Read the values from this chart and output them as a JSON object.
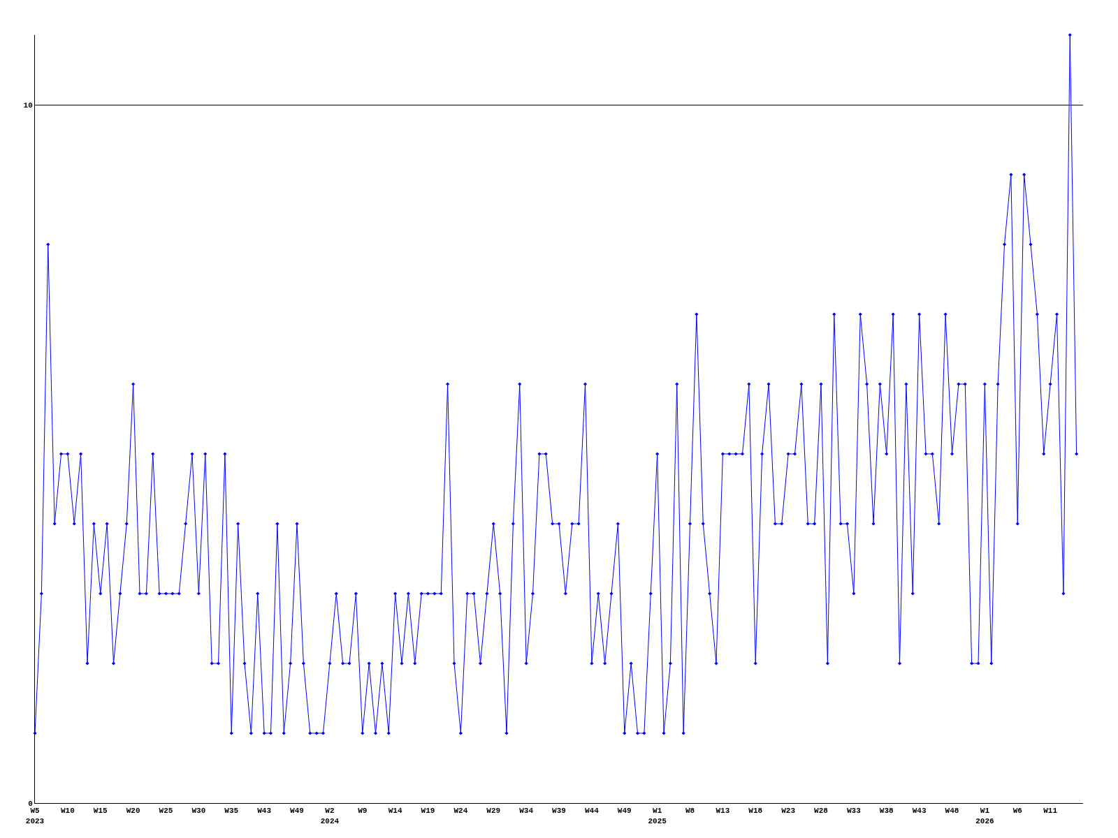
{
  "chart_data": {
    "type": "line",
    "categories": [
      "W5\n2023",
      null,
      null,
      null,
      null,
      "W10",
      null,
      null,
      null,
      null,
      "W15",
      null,
      null,
      null,
      null,
      "W20",
      null,
      null,
      null,
      null,
      "W25",
      null,
      null,
      null,
      null,
      "W30",
      null,
      null,
      null,
      null,
      "W35",
      null,
      null,
      null,
      null,
      "W43",
      null,
      null,
      null,
      null,
      "W49",
      null,
      null,
      null,
      null,
      "W2\n2024",
      null,
      null,
      null,
      null,
      "W9",
      null,
      null,
      null,
      null,
      "W14",
      null,
      null,
      null,
      null,
      "W19",
      null,
      null,
      null,
      null,
      "W24",
      null,
      null,
      null,
      null,
      "W29",
      null,
      null,
      null,
      null,
      "W34",
      null,
      null,
      null,
      null,
      "W39",
      null,
      null,
      null,
      null,
      "W44",
      null,
      null,
      null,
      null,
      "W49",
      null,
      null,
      null,
      null,
      "W1\n2025",
      null,
      null,
      null,
      null,
      "W8",
      null,
      null,
      null,
      null,
      "W13",
      null,
      null,
      null,
      null,
      "W18",
      null,
      null,
      null,
      null,
      "W23",
      null,
      null,
      null,
      null,
      "W28",
      null,
      null,
      null,
      null,
      "W33",
      null,
      null,
      null,
      null,
      "W38",
      null,
      null,
      null,
      null,
      "W43",
      null,
      null,
      null,
      null,
      "W48",
      null,
      null,
      null,
      null,
      "W1\n2026",
      null,
      null,
      null,
      null,
      "W6",
      null,
      null,
      null,
      null,
      "W11",
      null,
      null,
      null,
      null,
      null
    ],
    "series": [
      {
        "color": "#0000ff",
        "values": [
          1,
          3,
          8,
          4,
          5,
          5,
          4,
          5,
          2,
          4,
          3,
          4,
          2,
          3,
          4,
          6,
          3,
          3,
          5,
          3,
          3,
          3,
          3,
          4,
          5,
          3,
          5,
          2,
          2,
          5,
          1,
          4,
          2,
          1,
          3,
          1,
          1,
          4,
          1,
          2,
          4,
          2,
          1,
          1,
          1,
          2,
          3,
          2,
          2,
          3,
          1,
          2,
          1,
          2,
          1,
          3,
          2,
          3,
          2,
          3,
          3,
          3,
          3,
          6,
          2,
          1,
          3,
          3,
          2,
          3,
          4,
          3,
          1,
          4,
          6,
          2,
          3,
          5,
          5,
          4,
          4,
          3,
          4,
          4,
          6,
          2,
          3,
          2,
          3,
          4,
          1,
          2,
          1,
          1,
          3,
          5,
          1,
          2,
          6,
          1,
          4,
          7,
          4,
          3,
          2,
          5,
          5,
          5,
          5,
          6,
          2,
          5,
          6,
          4,
          4,
          5,
          5,
          6,
          4,
          4,
          6,
          2,
          7,
          4,
          4,
          3,
          7,
          6,
          4,
          6,
          5,
          7,
          2,
          6,
          3,
          7,
          5,
          5,
          4,
          7,
          5,
          6,
          6,
          2,
          2,
          6,
          2,
          6,
          8,
          9,
          4,
          9,
          8,
          7,
          5,
          6,
          7,
          3,
          11,
          5,
          null
        ]
      }
    ],
    "ylim": [
      0,
      11
    ],
    "yticks": [
      0,
      10
    ],
    "grid": "y",
    "marker": "diamond",
    "line_style": "solid"
  }
}
